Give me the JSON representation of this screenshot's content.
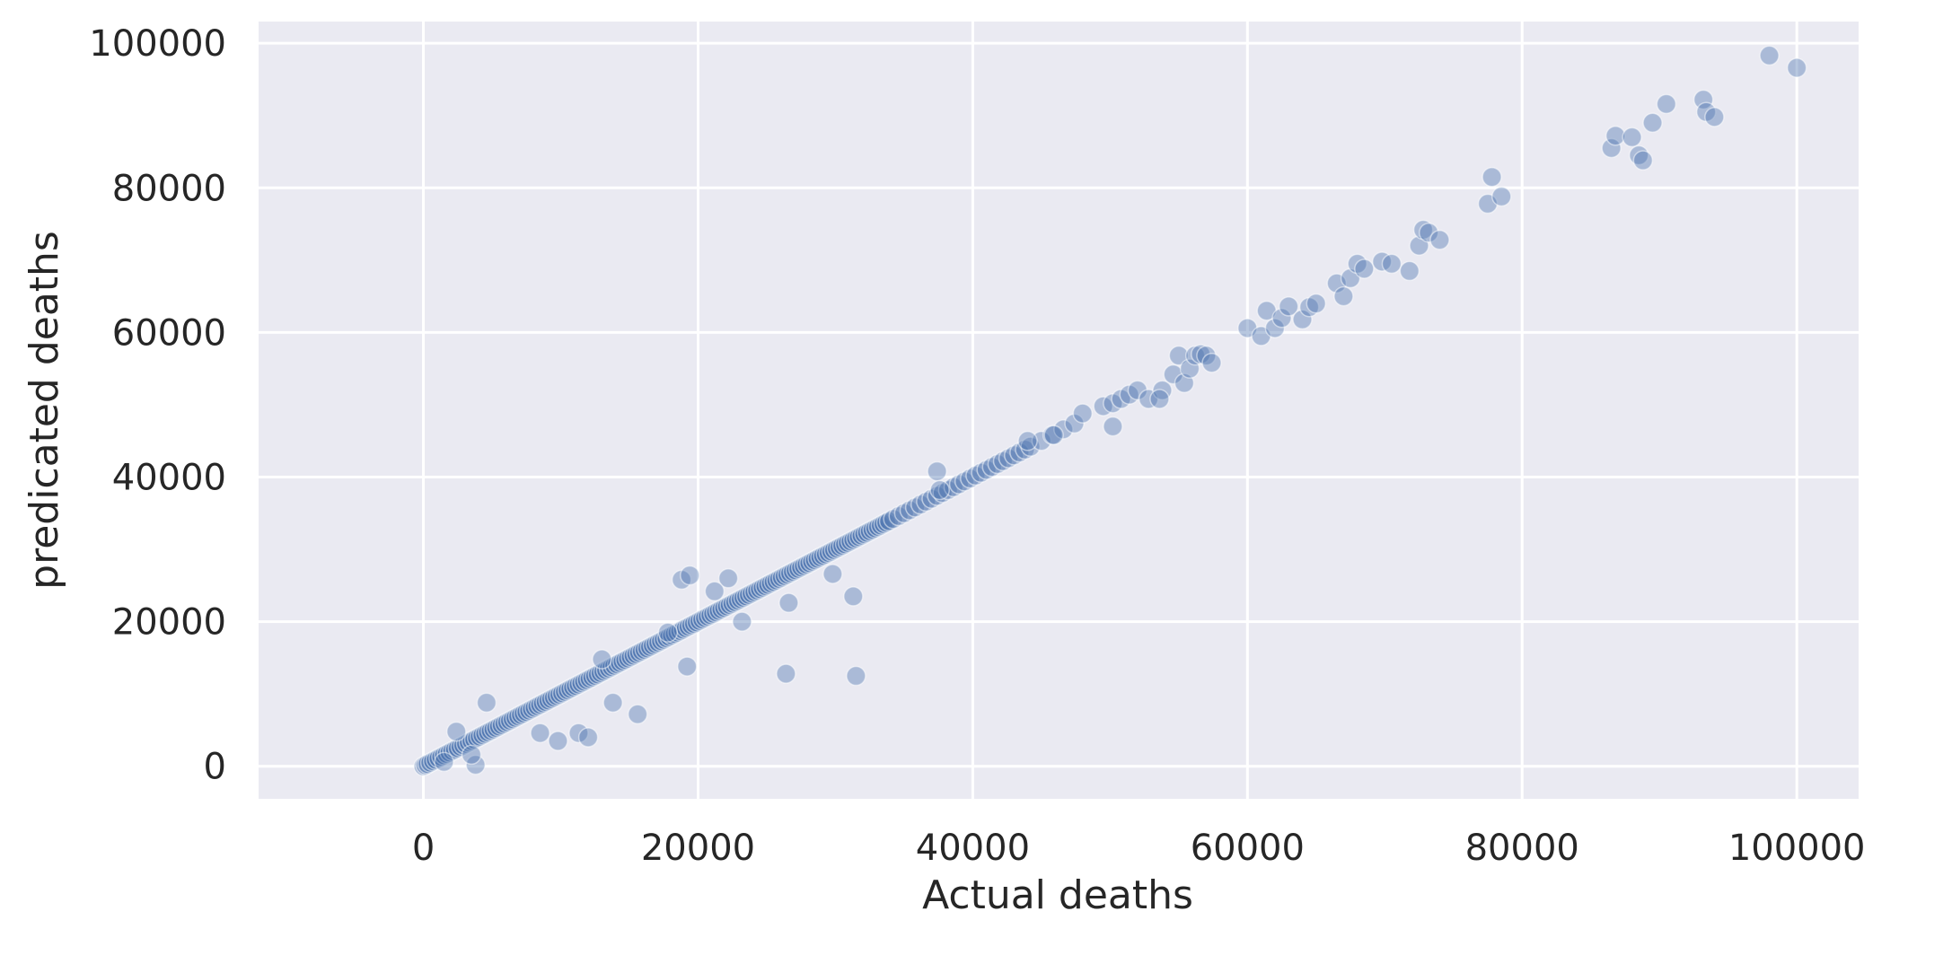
{
  "chart_data": {
    "type": "scatter",
    "title": "",
    "xlabel": "Actual deaths",
    "ylabel": "predicated deaths",
    "xlim": [
      -12000,
      104500
    ],
    "ylim": [
      -4500,
      103000
    ],
    "x_ticks": [
      0,
      20000,
      40000,
      60000,
      80000,
      100000
    ],
    "y_ticks": [
      0,
      20000,
      40000,
      60000,
      80000,
      100000
    ],
    "x_tick_labels": [
      "0",
      "20000",
      "40000",
      "60000",
      "80000",
      "100000"
    ],
    "y_tick_labels": [
      "0",
      "20000",
      "40000",
      "60000",
      "80000",
      "100000"
    ],
    "grid": true,
    "background": "#eaeaf2",
    "point_color": "#4c72b0",
    "series": [
      {
        "x": [
          0,
          150,
          300,
          500,
          700,
          900,
          1100,
          1300,
          1500,
          1700,
          1900,
          2100,
          2300,
          2500,
          2700,
          2900,
          3100,
          3300,
          3500,
          3700,
          3900,
          4100,
          4300,
          4500,
          4700,
          4900,
          5100,
          5300,
          5500,
          5700,
          5900,
          6100,
          6300,
          6500,
          6700,
          6900,
          7100,
          7300,
          7500,
          7700,
          7900,
          8100,
          8300,
          8500,
          8700,
          8900,
          9100,
          9300,
          9500,
          9700,
          9900,
          10100,
          10300,
          10500,
          10700,
          10900,
          11100,
          11300,
          11500,
          11700,
          11900,
          12100,
          12300,
          12500,
          12700,
          12900,
          13100,
          13300,
          13500,
          13700,
          13900,
          14100,
          14300,
          14500,
          14700,
          14900,
          15100,
          15300,
          15500,
          15700,
          15900,
          16100,
          16300,
          16500,
          16700,
          16900,
          17100,
          17300,
          17500,
          17700,
          17900,
          18100,
          18300,
          18500,
          18700,
          18900,
          19100,
          19300,
          19500,
          19700,
          19900,
          20100,
          20300,
          20500,
          20700,
          20900,
          21100,
          21300,
          21500,
          21700,
          21900,
          22100,
          22300,
          22500,
          22700,
          22900,
          23100,
          23300,
          23500,
          23700,
          23900,
          24100,
          24300,
          24500,
          24700,
          24900,
          25100,
          25300,
          25500,
          25700,
          25900,
          26100,
          26300,
          26500,
          26700,
          26900,
          27100,
          27300,
          27500,
          27700,
          27900,
          28100,
          28300,
          28500,
          28700,
          28900,
          29100,
          29300,
          29500,
          29700,
          29900,
          30100,
          30300,
          30500,
          30700,
          30900,
          31100,
          31300,
          31500,
          31700,
          31900,
          32100,
          32300,
          32500,
          32700,
          32900,
          33100,
          33300,
          33500,
          33700,
          33900,
          34200,
          34600,
          35000,
          35400,
          35800,
          36200,
          36600,
          37000,
          37400,
          37800,
          38200,
          38600,
          39000,
          39400,
          39800,
          40200,
          40600,
          41000,
          41400,
          41800,
          42200,
          42600,
          43000,
          43400,
          43800,
          44200,
          45000,
          45800,
          46600,
          47400,
          48000,
          49500,
          50200,
          50800,
          51400,
          52000,
          52800,
          53800,
          54600,
          55000,
          55400,
          55800,
          56200,
          56600,
          57000,
          57400,
          60000,
          61000,
          61400,
          62000,
          62500,
          63000,
          64000,
          64500,
          65000,
          66500,
          67000,
          67500,
          68000,
          68500,
          69800,
          70500,
          71800,
          72500,
          72800,
          73200,
          74000,
          77500,
          77800,
          78500,
          86500,
          86800,
          88000,
          88500,
          88800,
          89500,
          90500,
          93200,
          93400,
          94000,
          98000,
          100000,
          4600,
          3800,
          9800,
          11300,
          12000,
          13800,
          15600,
          19200,
          18800,
          19400,
          23200,
          26400,
          26600,
          31300,
          31500,
          29800,
          37400,
          37600,
          44000,
          50200,
          53600,
          45900,
          22200,
          21200,
          17800,
          13000,
          8500,
          1500,
          2400,
          3500
        ],
        "y": [
          0,
          150,
          300,
          500,
          700,
          900,
          1100,
          1300,
          1500,
          1700,
          1900,
          2100,
          2300,
          2500,
          2700,
          2900,
          3100,
          3300,
          3500,
          3700,
          3900,
          4100,
          4300,
          4500,
          4700,
          4900,
          5100,
          5300,
          5500,
          5700,
          5900,
          6100,
          6300,
          6500,
          6700,
          6900,
          7100,
          7300,
          7500,
          7700,
          7900,
          8100,
          8300,
          8500,
          8700,
          8900,
          9100,
          9300,
          9500,
          9700,
          9900,
          10100,
          10300,
          10500,
          10700,
          10900,
          11100,
          11300,
          11500,
          11700,
          11900,
          12100,
          12300,
          12500,
          12700,
          12900,
          13100,
          13300,
          13500,
          13700,
          13900,
          14100,
          14300,
          14500,
          14700,
          14900,
          15100,
          15300,
          15500,
          15700,
          15900,
          16100,
          16300,
          16500,
          16700,
          16900,
          17100,
          17300,
          17500,
          17700,
          17900,
          18100,
          18300,
          18500,
          18700,
          18900,
          19100,
          19300,
          19500,
          19700,
          19900,
          20100,
          20300,
          20500,
          20700,
          20900,
          21100,
          21300,
          21500,
          21700,
          21900,
          22100,
          22300,
          22500,
          22700,
          22900,
          23100,
          23300,
          23500,
          23700,
          23900,
          24100,
          24300,
          24500,
          24700,
          24900,
          25100,
          25300,
          25500,
          25700,
          25900,
          26100,
          26300,
          26500,
          26700,
          26900,
          27100,
          27300,
          27500,
          27700,
          27900,
          28100,
          28300,
          28500,
          28700,
          28900,
          29100,
          29300,
          29500,
          29700,
          29900,
          30100,
          30300,
          30500,
          30700,
          30900,
          31100,
          31300,
          31500,
          31700,
          31900,
          32100,
          32300,
          32500,
          32700,
          32900,
          33100,
          33300,
          33500,
          33700,
          33900,
          34200,
          34600,
          35000,
          35400,
          35800,
          36200,
          36600,
          37000,
          37400,
          37800,
          38200,
          38600,
          39000,
          39400,
          39800,
          40200,
          40600,
          41000,
          41400,
          41800,
          42200,
          42600,
          43000,
          43400,
          43800,
          44200,
          45000,
          45800,
          46600,
          47400,
          48800,
          49800,
          50200,
          50800,
          51400,
          52000,
          50800,
          52000,
          54200,
          56800,
          53000,
          55000,
          56800,
          57000,
          56800,
          55800,
          60600,
          59500,
          63000,
          60600,
          62000,
          63600,
          61800,
          63500,
          64000,
          66800,
          65000,
          67500,
          69500,
          68800,
          69800,
          69500,
          68500,
          72000,
          74200,
          73800,
          72800,
          77800,
          81500,
          78800,
          85500,
          87200,
          87000,
          84500,
          83800,
          89000,
          91600,
          92200,
          90500,
          89800,
          98300,
          96600,
          8800,
          200,
          3500,
          4600,
          4000,
          8800,
          7200,
          13800,
          25800,
          26400,
          20000,
          12800,
          22600,
          23500,
          12500,
          26600,
          40800,
          38200,
          45000,
          47000,
          50800,
          45800,
          26000,
          24200,
          18500,
          14800,
          4600,
          600,
          4800,
          1600
        ]
      }
    ]
  }
}
